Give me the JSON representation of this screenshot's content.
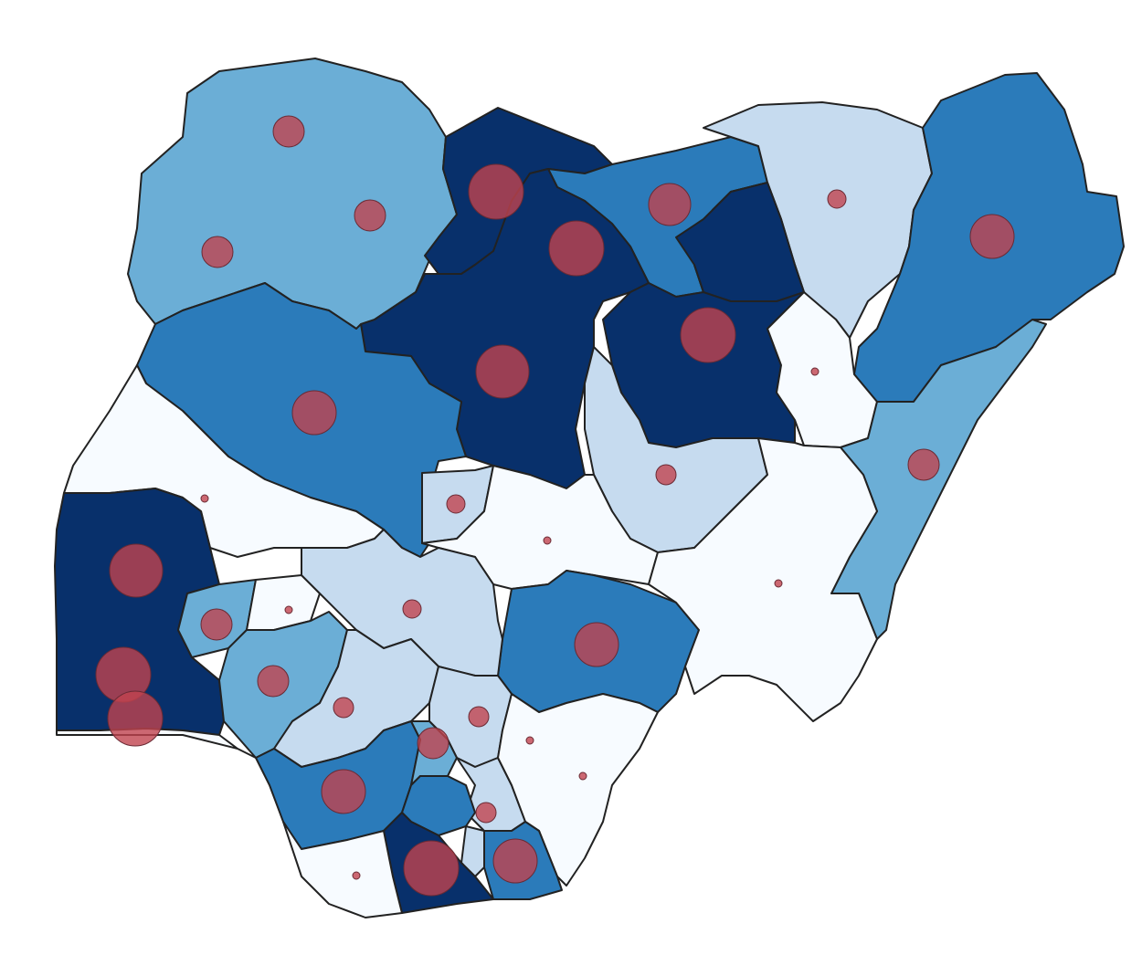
{
  "map": {
    "type": "choropleth-with-proportional-symbols",
    "legend": "none",
    "title": "",
    "palette": {
      "c0": "#f7fbff",
      "c1": "#c6dbef",
      "c2": "#6baed6",
      "c3": "#2b7bba",
      "c4": "#08306b",
      "bubble": "#c0444f",
      "bubble_opacity": 0.8,
      "border": "#222222"
    },
    "regions_by_class": {
      "c0": [
        "lagos-coast-outline",
        "south-central",
        "east-central",
        "ogun-west",
        "middle-belt-south",
        "southeast-inland"
      ],
      "c1": [
        "northeast-upper",
        "plateau-south",
        "kogi-west",
        "enugu-area",
        "imo-abia-north",
        "delta-north"
      ],
      "c2": [
        "northwest-big",
        "adamawa-taraba",
        "ondo-osun-west",
        "oyo-north",
        "anambra",
        "akwa-ibom-north"
      ],
      "c3": [
        "borno",
        "niger-kwara",
        "kano-jigawa",
        "benue",
        "edo-delta",
        "cross-river",
        "rivers-imo"
      ],
      "c4": [
        "katsina-kano-west",
        "kaduna",
        "bauchi-gombe",
        "oyo-ogun",
        "rivers-bayelsa",
        "kano-east"
      ]
    },
    "bubbles": [
      {
        "id": "b01",
        "magnitude": 17
      },
      {
        "id": "b02",
        "magnitude": 17
      },
      {
        "id": "b03",
        "magnitude": 17
      },
      {
        "id": "b04",
        "magnitude": 30
      },
      {
        "id": "b05",
        "magnitude": 30
      },
      {
        "id": "b06",
        "magnitude": 23
      },
      {
        "id": "b07",
        "magnitude": 10
      },
      {
        "id": "b08",
        "magnitude": 24
      },
      {
        "id": "b09",
        "magnitude": 29
      },
      {
        "id": "b10",
        "magnitude": 30
      },
      {
        "id": "b11",
        "magnitude": 24
      },
      {
        "id": "b12",
        "magnitude": 4
      },
      {
        "id": "b13",
        "magnitude": 17
      },
      {
        "id": "b14",
        "magnitude": 11
      },
      {
        "id": "b15",
        "magnitude": 10
      },
      {
        "id": "b16",
        "magnitude": 4
      },
      {
        "id": "b17",
        "magnitude": 4
      },
      {
        "id": "b18",
        "magnitude": 4
      },
      {
        "id": "b19",
        "magnitude": 29
      },
      {
        "id": "b20",
        "magnitude": 30
      },
      {
        "id": "b21",
        "magnitude": 30
      },
      {
        "id": "b22",
        "magnitude": 17
      },
      {
        "id": "b23",
        "magnitude": 17
      },
      {
        "id": "b24",
        "magnitude": 10
      },
      {
        "id": "b25",
        "magnitude": 24
      },
      {
        "id": "b26",
        "magnitude": 11
      },
      {
        "id": "b27",
        "magnitude": 4
      },
      {
        "id": "b28",
        "magnitude": 11
      },
      {
        "id": "b29",
        "magnitude": 17
      },
      {
        "id": "b30",
        "magnitude": 24
      },
      {
        "id": "b31",
        "magnitude": 11
      },
      {
        "id": "b32",
        "magnitude": 4
      },
      {
        "id": "b33",
        "magnitude": 4
      },
      {
        "id": "b34",
        "magnitude": 30
      },
      {
        "id": "b35",
        "magnitude": 24
      },
      {
        "id": "b36",
        "magnitude": 4
      }
    ]
  }
}
